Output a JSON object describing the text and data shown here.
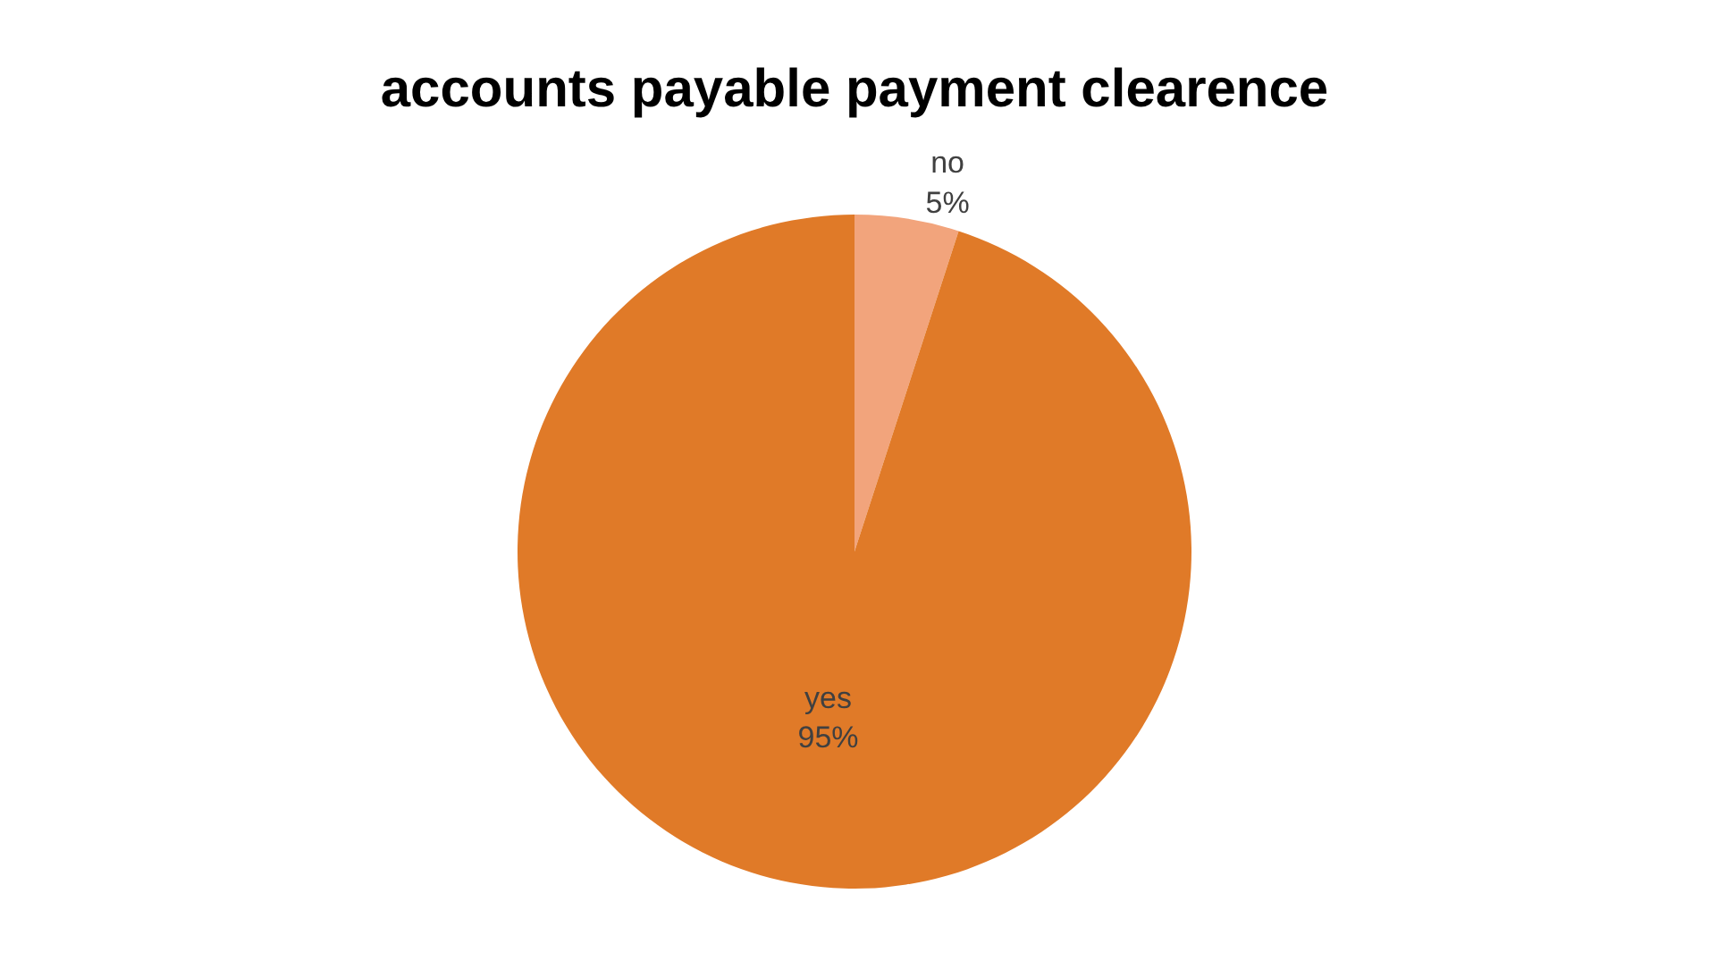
{
  "chart_data": {
    "type": "pie",
    "title": "accounts payable payment clearence",
    "categories": [
      "no",
      "yes"
    ],
    "values": [
      5,
      95
    ],
    "colors": [
      "#f2a47c",
      "#e07a28"
    ],
    "value_labels": [
      "5%",
      "95%"
    ],
    "legend": false
  }
}
